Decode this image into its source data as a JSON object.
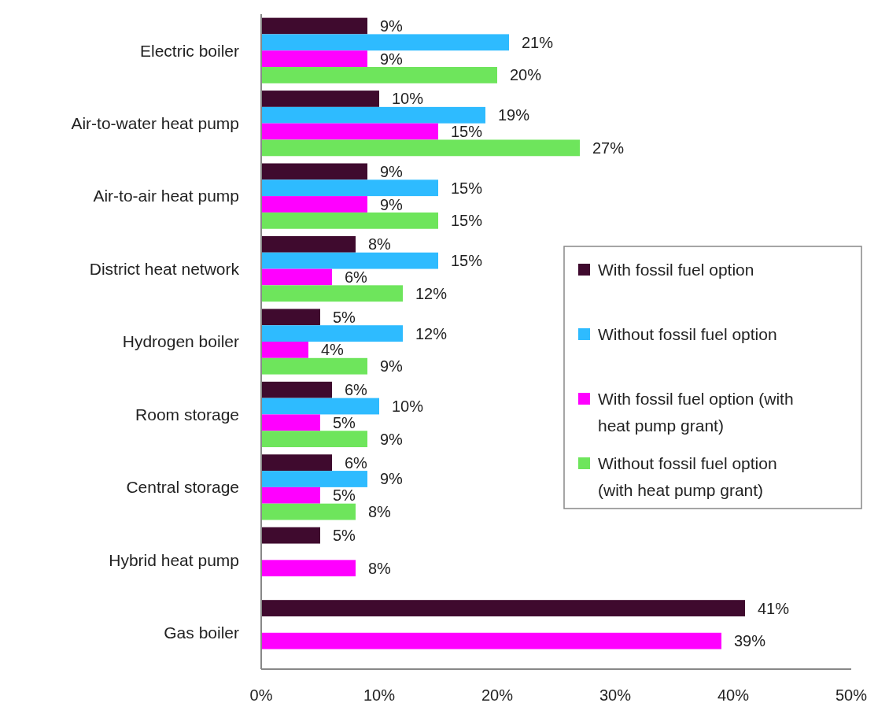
{
  "chart_data": {
    "type": "bar",
    "orientation": "horizontal",
    "categories": [
      "Electric boiler",
      "Air-to-water heat pump",
      "Air-to-air heat pump",
      "District heat network",
      "Hydrogen boiler",
      "Room storage",
      "Central storage",
      "Hybrid heat pump",
      "Gas boiler"
    ],
    "series": [
      {
        "name": "With fossil fuel option",
        "color": "#3f0a2e",
        "values": [
          9,
          10,
          9,
          8,
          5,
          6,
          6,
          5,
          41
        ],
        "value_labels": [
          "9%",
          "10%",
          "9%",
          "8%",
          "5%",
          "6%",
          "6%",
          "5%",
          "41%"
        ]
      },
      {
        "name": "Without fossil fuel option",
        "color": "#2ebbff",
        "values": [
          21,
          19,
          15,
          15,
          12,
          10,
          9,
          null,
          null
        ],
        "value_labels": [
          "21%",
          "19%",
          "15%",
          "15%",
          "12%",
          "10%",
          "9%",
          null,
          null
        ]
      },
      {
        "name": "With fossil fuel option (with heat pump grant)",
        "color": "#ff00ff",
        "values": [
          9,
          15,
          9,
          6,
          4,
          5,
          5,
          8,
          39
        ],
        "value_labels": [
          "9%",
          "15%",
          "9%",
          "6%",
          "4%",
          "5%",
          "5%",
          "8%",
          "39%"
        ]
      },
      {
        "name": "Without fossil fuel option (with heat pump grant)",
        "color": "#6ee55c",
        "values": [
          20,
          27,
          15,
          12,
          9,
          9,
          8,
          null,
          null
        ],
        "value_labels": [
          "20%",
          "27%",
          "15%",
          "12%",
          "9%",
          "9%",
          "8%",
          null,
          null
        ]
      }
    ],
    "xlim": [
      0,
      50
    ],
    "xticks": [
      {
        "value": 0,
        "label": "0%"
      },
      {
        "value": 10,
        "label": "10%"
      },
      {
        "value": 20,
        "label": "20%"
      },
      {
        "value": 30,
        "label": "30%"
      },
      {
        "value": 40,
        "label": "40%"
      },
      {
        "value": 50,
        "label": "50%"
      }
    ],
    "grid": false,
    "legend": "right"
  }
}
